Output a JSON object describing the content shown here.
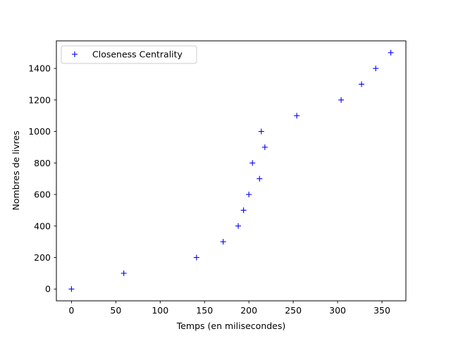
{
  "chart_data": {
    "type": "scatter",
    "title": "",
    "xlabel": "Temps (en milisecondes)",
    "ylabel": "Nombres de livres",
    "xlim": [
      -17,
      377
    ],
    "ylim": [
      -75,
      1575
    ],
    "xticks": [
      0,
      50,
      100,
      150,
      200,
      250,
      300,
      350
    ],
    "yticks": [
      0,
      200,
      400,
      600,
      800,
      1000,
      1200,
      1400
    ],
    "grid": false,
    "legend_position": "upper left",
    "series": [
      {
        "name": "Closeness Centrality",
        "marker": "+",
        "color": "#0000ff",
        "points": [
          {
            "x": 0,
            "y": 0
          },
          {
            "x": 59,
            "y": 100
          },
          {
            "x": 141,
            "y": 200
          },
          {
            "x": 171,
            "y": 300
          },
          {
            "x": 188,
            "y": 400
          },
          {
            "x": 194,
            "y": 500
          },
          {
            "x": 200,
            "y": 600
          },
          {
            "x": 204,
            "y": 800
          },
          {
            "x": 212,
            "y": 700
          },
          {
            "x": 214,
            "y": 1000
          },
          {
            "x": 218,
            "y": 900
          },
          {
            "x": 254,
            "y": 1100
          },
          {
            "x": 304,
            "y": 1200
          },
          {
            "x": 327,
            "y": 1300
          },
          {
            "x": 343,
            "y": 1400
          },
          {
            "x": 360,
            "y": 1500
          }
        ]
      }
    ]
  }
}
